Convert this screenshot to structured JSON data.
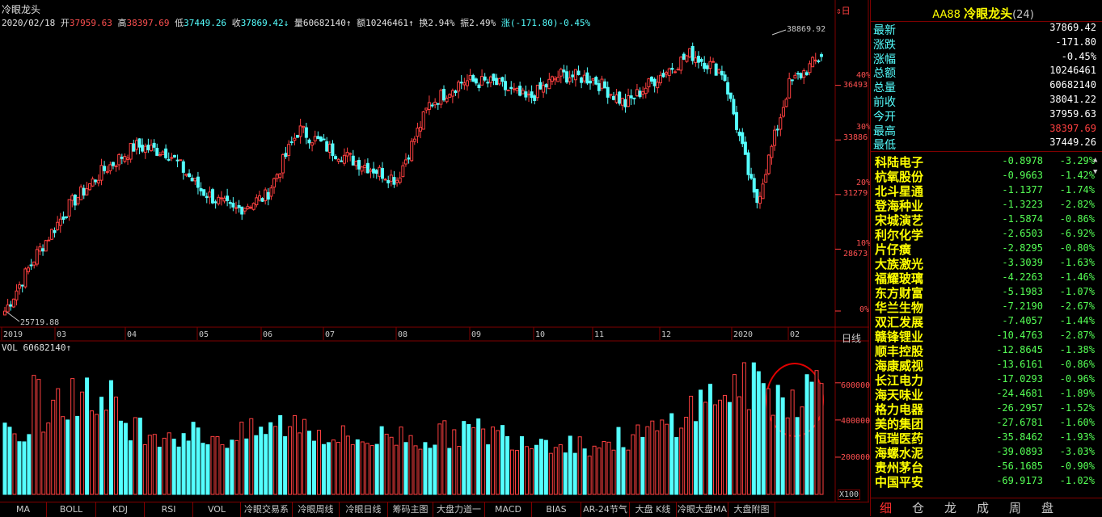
{
  "chart": {
    "title": "冷眼龙头",
    "ohlc": {
      "date": "2020/02/18",
      "open_label": "开",
      "open": "37959.63",
      "high_label": "高",
      "high": "38397.69",
      "low_label": "低",
      "low": "37449.26",
      "close_label": "收",
      "close": "37869.42",
      "volume_label": "量",
      "volume": "60682140",
      "amount_label": "额",
      "amount": "10246461",
      "turnover_label": "换",
      "turnover": "2.94%",
      "amplitude_label": "振",
      "amplitude": "2.49%",
      "change_label": "涨",
      "change": "(-171.80)-0.45%"
    },
    "max_label": "38869.92",
    "min_label": "25719.88",
    "period_label": "日线",
    "price_axis": [
      {
        "pct": "40%",
        "price": "36493"
      },
      {
        "pct": "30%",
        "price": "33886"
      },
      {
        "pct": "20%",
        "price": "31279"
      },
      {
        "pct": "10%",
        "price": "28673"
      },
      {
        "pct": "0%",
        "price": ""
      }
    ],
    "x_labels": [
      "2019",
      "03",
      "04",
      "05",
      "06",
      "07",
      "08",
      "09",
      "10",
      "11",
      "12",
      "2020",
      "02"
    ],
    "volume_header": "VOL 60682140",
    "volume_axis": [
      "600000",
      "400000",
      "200000"
    ],
    "volume_unit": "X100",
    "colors": {
      "up": "#ff4040",
      "down": "#54ffff",
      "grid": "#800000"
    }
  },
  "indicator_tabs": [
    "MA",
    "BOLL",
    "KDJ",
    "RSI",
    "VOL",
    "冷眼交易系",
    "冷眼周线",
    "冷眼日线",
    "筹码主图",
    "大盘力道一",
    "MACD",
    "BIAS",
    "AR-24节气",
    "大盘 K线",
    "冷眼大盘MA",
    "大盘附图"
  ],
  "side": {
    "code": "AA88",
    "name": "冷眼龙头",
    "count": "(24)",
    "quote": [
      {
        "k": "最新",
        "v": "37869.42",
        "color": "#ffffff"
      },
      {
        "k": "涨跌",
        "v": "-171.80",
        "color": "#ffffff"
      },
      {
        "k": "涨幅",
        "v": "-0.45%",
        "color": "#ffffff"
      },
      {
        "k": "总额",
        "v": "10246461",
        "color": "#ffffff"
      },
      {
        "k": "总量",
        "v": "60682140",
        "color": "#ffffff"
      },
      {
        "k": "前收",
        "v": "38041.22",
        "color": "#ffffff"
      },
      {
        "k": "今开",
        "v": "37959.63",
        "color": "#ffffff"
      },
      {
        "k": "最高",
        "v": "38397.69",
        "color": "#ff4040"
      },
      {
        "k": "最低",
        "v": "37449.26",
        "color": "#ffffff"
      }
    ],
    "stocks": [
      {
        "name": "科陆电子",
        "d": "-0.8978",
        "p": "-3.29%"
      },
      {
        "name": "杭氧股份",
        "d": "-0.9663",
        "p": "-1.42%"
      },
      {
        "name": "北斗星通",
        "d": "-1.1377",
        "p": "-1.74%"
      },
      {
        "name": "登海种业",
        "d": "-1.3223",
        "p": "-2.82%"
      },
      {
        "name": "宋城演艺",
        "d": "-1.5874",
        "p": "-0.86%"
      },
      {
        "name": "利尔化学",
        "d": "-2.6503",
        "p": "-6.92%"
      },
      {
        "name": "片仔癀",
        "d": "-2.8295",
        "p": "-0.80%"
      },
      {
        "name": "大族激光",
        "d": "-3.3039",
        "p": "-1.63%"
      },
      {
        "name": "福耀玻璃",
        "d": "-4.2263",
        "p": "-1.46%"
      },
      {
        "name": "东方财富",
        "d": "-5.1983",
        "p": "-1.07%"
      },
      {
        "name": "华兰生物",
        "d": "-7.2190",
        "p": "-2.67%"
      },
      {
        "name": "双汇发展",
        "d": "-7.4057",
        "p": "-1.44%"
      },
      {
        "name": "赣锋锂业",
        "d": "-10.4763",
        "p": "-2.87%"
      },
      {
        "name": "顺丰控股",
        "d": "-12.8645",
        "p": "-1.38%"
      },
      {
        "name": "海康威视",
        "d": "-13.6161",
        "p": "-0.86%"
      },
      {
        "name": "长江电力",
        "d": "-17.0293",
        "p": "-0.96%"
      },
      {
        "name": "海天味业",
        "d": "-24.4681",
        "p": "-1.89%"
      },
      {
        "name": "格力电器",
        "d": "-26.2957",
        "p": "-1.52%"
      },
      {
        "name": "美的集团",
        "d": "-27.6781",
        "p": "-1.60%"
      },
      {
        "name": "恒瑞医药",
        "d": "-35.8462",
        "p": "-1.93%"
      },
      {
        "name": "海螺水泥",
        "d": "-39.0893",
        "p": "-3.03%"
      },
      {
        "name": "贵州茅台",
        "d": "-56.1685",
        "p": "-0.90%"
      },
      {
        "name": "中国平安",
        "d": "-69.9173",
        "p": "-1.02%"
      }
    ],
    "bottom_tabs": [
      "细",
      "仓",
      "龙",
      "成",
      "周",
      "盘"
    ]
  },
  "chart_data": {
    "type": "candlestick",
    "title": "冷眼龙头",
    "ylim": [
      25719.88,
      38869.92
    ],
    "price_ticks": [
      25719.88,
      28673,
      31279,
      33886,
      36493
    ],
    "volume_ticks": [
      200000,
      400000,
      600000
    ],
    "x_tick_labels": [
      "2019",
      "03",
      "04",
      "05",
      "06",
      "07",
      "08",
      "09",
      "10",
      "11",
      "12",
      "2020",
      "02"
    ],
    "trend_closes": [
      25720,
      28500,
      30800,
      32400,
      33600,
      33300,
      31500,
      30500,
      31200,
      34400,
      33400,
      32700,
      32000,
      35600,
      36700,
      36600,
      35800,
      37000,
      36800,
      35600,
      36900,
      38000,
      37100,
      30800,
      36500,
      37870
    ],
    "volume_trend": [
      280000,
      420000,
      520000,
      470000,
      360000,
      330000,
      320000,
      300000,
      350000,
      390000,
      310000,
      290000,
      320000,
      300000,
      340000,
      330000,
      300000,
      290000,
      260000,
      300000,
      340000,
      460000,
      560000,
      580000,
      520000,
      600000
    ],
    "last": {
      "open": 37959.63,
      "high": 38397.69,
      "low": 37449.26,
      "close": 37869.42,
      "volume": 60682140
    }
  }
}
